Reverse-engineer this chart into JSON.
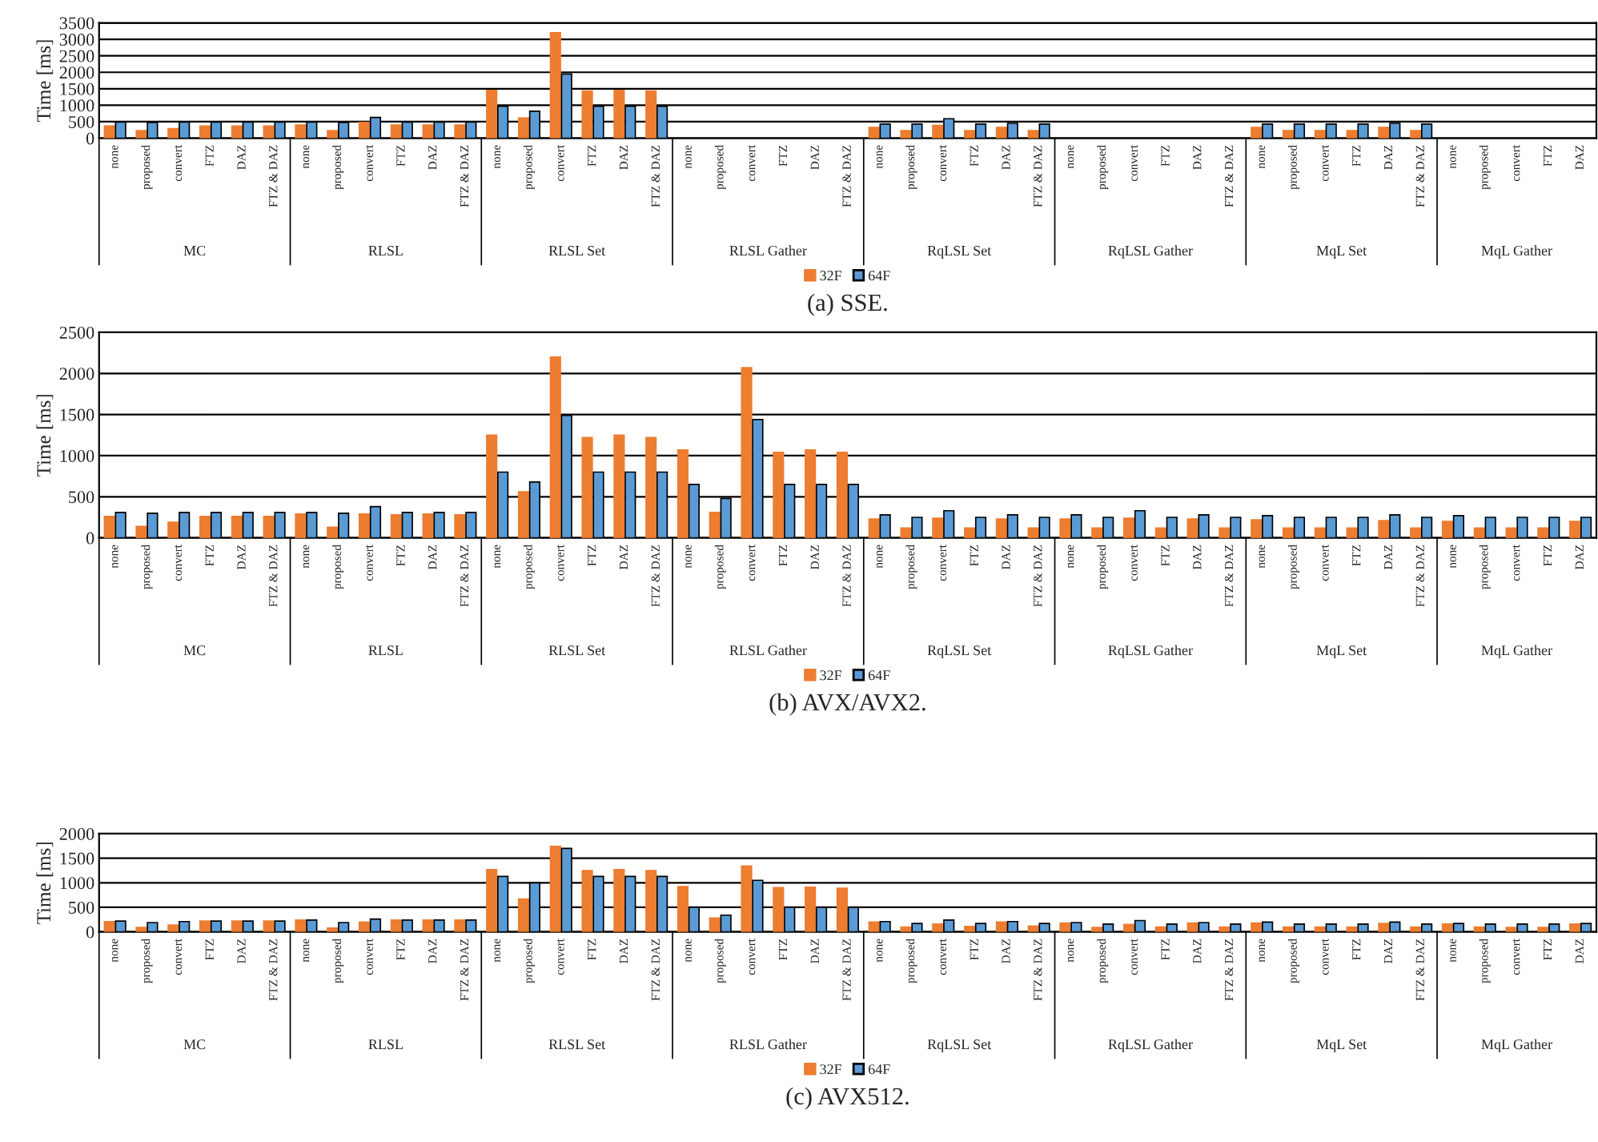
{
  "chart_data": [
    {
      "type": "bar",
      "title": "(a) SSE.",
      "ylabel": "Time [ms]",
      "ylim": [
        0,
        3500
      ],
      "yticks": [
        0,
        500,
        1000,
        1500,
        2000,
        2500,
        3000,
        3500
      ],
      "grid": "y",
      "legend": "bottom",
      "categories": [
        "none",
        "proposed",
        "convert",
        "FTZ",
        "DAZ",
        "FTZ & DAZ",
        "none",
        "proposed",
        "convert",
        "FTZ",
        "DAZ",
        "FTZ & DAZ",
        "none",
        "proposed",
        "convert",
        "FTZ",
        "DAZ",
        "FTZ & DAZ",
        "none",
        "proposed",
        "convert",
        "FTZ",
        "DAZ",
        "FTZ & DAZ",
        "none",
        "proposed",
        "convert",
        "FTZ",
        "DAZ",
        "FTZ & DAZ",
        "none",
        "proposed",
        "convert",
        "FTZ",
        "DAZ",
        "FTZ & DAZ",
        "none",
        "proposed",
        "convert",
        "FTZ",
        "DAZ",
        "FTZ & DAZ",
        "none",
        "proposed",
        "convert",
        "FTZ",
        "DAZ"
      ],
      "annotations": [
        "MC",
        "RLSL",
        "RLSL Set",
        "RLSL Gather",
        "RqLSL Set",
        "RqLSL Gather",
        "MqL Set",
        "MqL Gather"
      ],
      "series": [
        {
          "name": "32F",
          "color": "#ed7d31",
          "values": [
            370,
            230,
            290,
            370,
            370,
            370,
            400,
            230,
            480,
            400,
            400,
            400,
            1450,
            610,
            3200,
            1430,
            1450,
            1430,
            null,
            null,
            null,
            null,
            null,
            null,
            330,
            230,
            390,
            230,
            330,
            230,
            null,
            null,
            null,
            null,
            null,
            null,
            330,
            230,
            230,
            230,
            330,
            230,
            null,
            null,
            null,
            null,
            null
          ]
        },
        {
          "name": "64F",
          "color": "#5b9bd5",
          "values": [
            490,
            480,
            490,
            490,
            490,
            490,
            490,
            480,
            630,
            490,
            490,
            490,
            970,
            820,
            1950,
            970,
            970,
            970,
            null,
            null,
            null,
            null,
            null,
            null,
            430,
            430,
            590,
            430,
            450,
            430,
            null,
            null,
            null,
            null,
            null,
            null,
            430,
            430,
            430,
            430,
            450,
            430,
            null,
            null,
            null,
            null,
            null
          ]
        }
      ]
    },
    {
      "type": "bar",
      "title": "(b) AVX/AVX2.",
      "ylabel": "Time [ms]",
      "ylim": [
        0,
        2500
      ],
      "yticks": [
        0,
        500,
        1000,
        1500,
        2000,
        2500
      ],
      "grid": "y",
      "legend": "bottom",
      "categories": [
        "none",
        "proposed",
        "convert",
        "FTZ",
        "DAZ",
        "FTZ & DAZ",
        "none",
        "proposed",
        "convert",
        "FTZ",
        "DAZ",
        "FTZ & DAZ",
        "none",
        "proposed",
        "convert",
        "FTZ",
        "DAZ",
        "FTZ & DAZ",
        "none",
        "proposed",
        "convert",
        "FTZ",
        "DAZ",
        "FTZ & DAZ",
        "none",
        "proposed",
        "convert",
        "FTZ",
        "DAZ",
        "FTZ & DAZ",
        "none",
        "proposed",
        "convert",
        "FTZ",
        "DAZ",
        "FTZ & DAZ",
        "none",
        "proposed",
        "convert",
        "FTZ",
        "DAZ",
        "FTZ & DAZ",
        "none",
        "proposed",
        "convert",
        "FTZ",
        "DAZ"
      ],
      "annotations": [
        "MC",
        "RLSL",
        "RLSL Set",
        "RLSL Gather",
        "RqLSL Set",
        "RqLSL Gather",
        "MqL Set",
        "MqL Gather"
      ],
      "series": [
        {
          "name": "32F",
          "color": "#ed7d31",
          "values": [
            260,
            140,
            190,
            260,
            260,
            260,
            290,
            130,
            290,
            280,
            290,
            280,
            1250,
            560,
            2200,
            1220,
            1250,
            1220,
            1070,
            310,
            2070,
            1040,
            1070,
            1040,
            230,
            120,
            240,
            120,
            230,
            120,
            230,
            120,
            240,
            120,
            230,
            120,
            220,
            120,
            120,
            120,
            210,
            120,
            200,
            120,
            120,
            120,
            200
          ]
        },
        {
          "name": "64F",
          "color": "#5b9bd5",
          "values": [
            310,
            300,
            310,
            310,
            310,
            310,
            310,
            300,
            380,
            310,
            310,
            310,
            800,
            680,
            1490,
            800,
            800,
            800,
            650,
            480,
            1440,
            650,
            650,
            650,
            280,
            250,
            330,
            250,
            280,
            250,
            280,
            250,
            330,
            250,
            280,
            250,
            270,
            250,
            250,
            250,
            280,
            250,
            270,
            250,
            250,
            250,
            250
          ]
        }
      ]
    },
    {
      "type": "bar",
      "title": "(c) AVX512.",
      "ylabel": "Time [ms]",
      "ylim": [
        0,
        2000
      ],
      "yticks": [
        0,
        500,
        1000,
        1500,
        2000
      ],
      "grid": "y",
      "legend": "bottom",
      "categories": [
        "none",
        "proposed",
        "convert",
        "FTZ",
        "DAZ",
        "FTZ & DAZ",
        "none",
        "proposed",
        "convert",
        "FTZ",
        "DAZ",
        "FTZ & DAZ",
        "none",
        "proposed",
        "convert",
        "FTZ",
        "DAZ",
        "FTZ & DAZ",
        "none",
        "proposed",
        "convert",
        "FTZ",
        "DAZ",
        "FTZ & DAZ",
        "none",
        "proposed",
        "convert",
        "FTZ",
        "DAZ",
        "FTZ & DAZ",
        "none",
        "proposed",
        "convert",
        "FTZ",
        "DAZ",
        "FTZ & DAZ",
        "none",
        "proposed",
        "convert",
        "FTZ",
        "DAZ",
        "FTZ & DAZ",
        "none",
        "proposed",
        "convert",
        "FTZ",
        "DAZ"
      ],
      "annotations": [
        "MC",
        "RLSL",
        "RLSL Set",
        "RLSL Gather",
        "RqLSL Set",
        "RqLSL Gather",
        "MqL Set",
        "MqL Gather"
      ],
      "series": [
        {
          "name": "32F",
          "color": "#ed7d31",
          "values": [
            210,
            90,
            140,
            220,
            220,
            220,
            240,
            80,
            200,
            240,
            240,
            240,
            1270,
            670,
            1740,
            1250,
            1270,
            1250,
            920,
            280,
            1340,
            900,
            910,
            890,
            200,
            100,
            160,
            110,
            200,
            120,
            180,
            90,
            150,
            100,
            180,
            100,
            180,
            100,
            100,
            100,
            170,
            100,
            160,
            100,
            90,
            90,
            160
          ]
        },
        {
          "name": "64F",
          "color": "#5b9bd5",
          "values": [
            220,
            190,
            210,
            220,
            220,
            220,
            240,
            190,
            260,
            240,
            240,
            240,
            1130,
            1000,
            1700,
            1130,
            1130,
            1130,
            500,
            340,
            1050,
            500,
            500,
            500,
            210,
            170,
            240,
            170,
            210,
            170,
            190,
            160,
            230,
            160,
            190,
            160,
            200,
            160,
            160,
            160,
            200,
            160,
            170,
            160,
            160,
            160,
            170
          ]
        }
      ]
    }
  ]
}
